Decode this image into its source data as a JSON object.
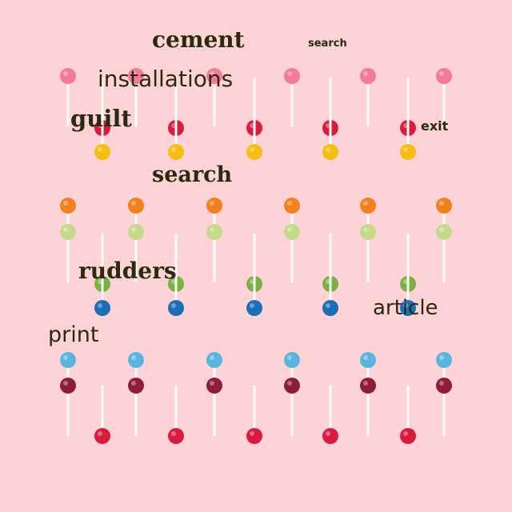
{
  "scene": {
    "background": "#fdd3d7",
    "subject": "lollipops",
    "stick_color": "#fbfbf7"
  },
  "palette": {
    "pink": "#f27a9a",
    "red": "#d81b3f",
    "yellow": "#f6be12",
    "orange": "#f2801e",
    "lime": "#c4d989",
    "green": "#7bb043",
    "blue": "#1a6fb6",
    "sky": "#59b5e0",
    "maroon": "#8e1d3c"
  },
  "words": {
    "w1": "cement",
    "w2": "search",
    "w3": "installations",
    "w4": "guilt",
    "w5": "exit",
    "w6": "search",
    "w7": "rudders",
    "w8": "article",
    "w9": "print"
  }
}
